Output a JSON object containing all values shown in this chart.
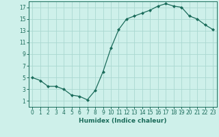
{
  "x": [
    0,
    1,
    2,
    3,
    4,
    5,
    6,
    7,
    8,
    9,
    10,
    11,
    12,
    13,
    14,
    15,
    16,
    17,
    18,
    19,
    20,
    21,
    22,
    23
  ],
  "y": [
    5,
    4.5,
    3.5,
    3.5,
    3.0,
    2.0,
    1.8,
    1.2,
    2.8,
    6.0,
    10.0,
    13.2,
    15.0,
    15.5,
    16.0,
    16.5,
    17.2,
    17.6,
    17.2,
    17.0,
    15.5,
    15.0,
    14.0,
    13.2
  ],
  "xlabel": "Humidex (Indice chaleur)",
  "xlim": [
    -0.5,
    23.5
  ],
  "ylim": [
    0,
    18
  ],
  "yticks": [
    1,
    3,
    5,
    7,
    9,
    11,
    13,
    15,
    17
  ],
  "xticks": [
    0,
    1,
    2,
    3,
    4,
    5,
    6,
    7,
    8,
    9,
    10,
    11,
    12,
    13,
    14,
    15,
    16,
    17,
    18,
    19,
    20,
    21,
    22,
    23
  ],
  "line_color": "#1a6b5a",
  "marker": "D",
  "marker_size": 2.0,
  "bg_color": "#cef0ea",
  "grid_color": "#aad8d0",
  "label_fontsize": 6.5,
  "tick_fontsize": 5.5
}
